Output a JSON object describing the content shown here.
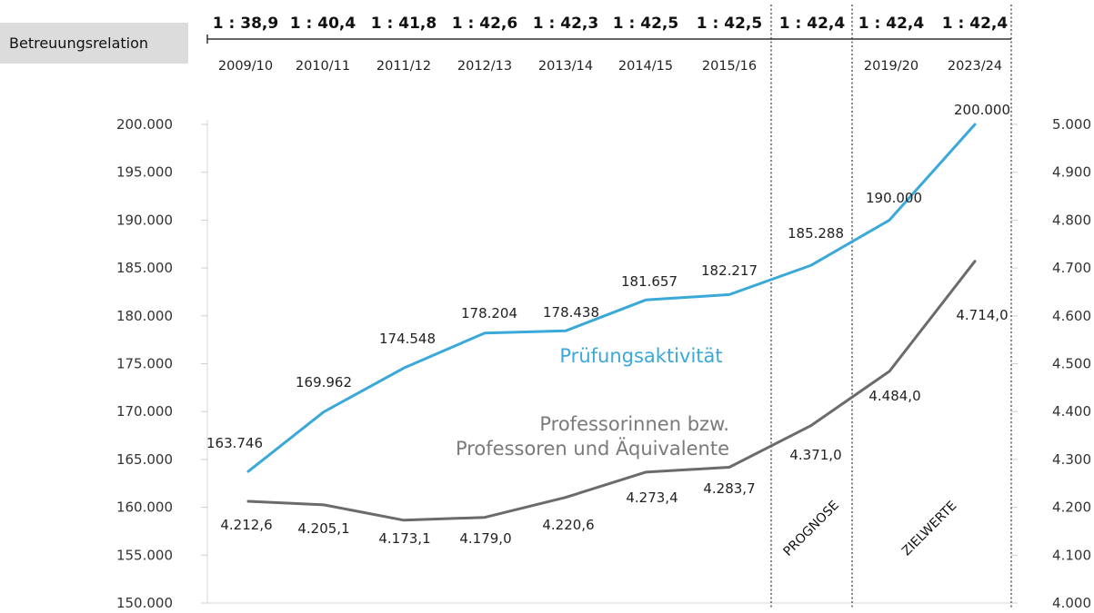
{
  "chart_data": {
    "type": "line",
    "categories": [
      "2009/10",
      "2010/11",
      "2011/12",
      "2012/13",
      "2013/14",
      "2014/15",
      "2015/16",
      "",
      "2019/20",
      "2023/24"
    ],
    "ratio_header": {
      "label": "Betreuungsrelation",
      "values": [
        "1 : 38,9",
        "1 : 40,4",
        "1 : 41,8",
        "1 : 42,6",
        "1 : 42,3",
        "1 : 42,5",
        "1 : 42,5",
        "1 : 42,4",
        "1 : 42,4",
        "1 : 42,4"
      ]
    },
    "series": [
      {
        "name": "Prüfungsaktivität",
        "axis": "left",
        "color": "#3aa8d8",
        "values": [
          163746,
          169962,
          174548,
          178204,
          178438,
          181657,
          182217,
          185288,
          190000,
          200000
        ],
        "labels": [
          "163.746",
          "169.962",
          "174.548",
          "178.204",
          "178.438",
          "181.657",
          "182.217",
          "185.288",
          "190.000",
          "200.000"
        ]
      },
      {
        "name": "Professorinnen bzw. Professoren und Äquivalente",
        "name_lines": [
          "Professorinnen bzw.",
          "Professoren und Äquivalente"
        ],
        "axis": "right",
        "color": "#6b6b6b",
        "values": [
          4212.6,
          4205.1,
          4173.1,
          4179.0,
          4220.6,
          4273.4,
          4283.7,
          4371.0,
          4484.0,
          4714.0
        ],
        "labels": [
          "4.212,6",
          "4.205,1",
          "4.173,1",
          "4.179,0",
          "4.220,6",
          "4.273,4",
          "4.283,7",
          "4.371,0",
          "4.484,0",
          "4.714,0"
        ]
      }
    ],
    "y_left": {
      "range": [
        150000,
        200000
      ],
      "ticks": [
        150000,
        155000,
        160000,
        165000,
        170000,
        175000,
        180000,
        185000,
        190000,
        195000,
        200000
      ],
      "tick_labels": [
        "150.000",
        "155.000",
        "160.000",
        "165.000",
        "170.000",
        "175.000",
        "180.000",
        "185.000",
        "190.000",
        "195.000",
        "200.000"
      ]
    },
    "y_right": {
      "range": [
        4000,
        5000
      ],
      "ticks": [
        4000,
        4100,
        4200,
        4300,
        4400,
        4500,
        4600,
        4700,
        4800,
        4900,
        5000
      ],
      "tick_labels": [
        "4.000",
        "4.100",
        "4.200",
        "4.300",
        "4.400",
        "4.500",
        "4.600",
        "4.700",
        "4.800",
        "4.900",
        "5.000"
      ]
    },
    "zones": [
      {
        "label": "PROGNOSE"
      },
      {
        "label": "ZIELWERTE"
      }
    ],
    "grid": false
  }
}
